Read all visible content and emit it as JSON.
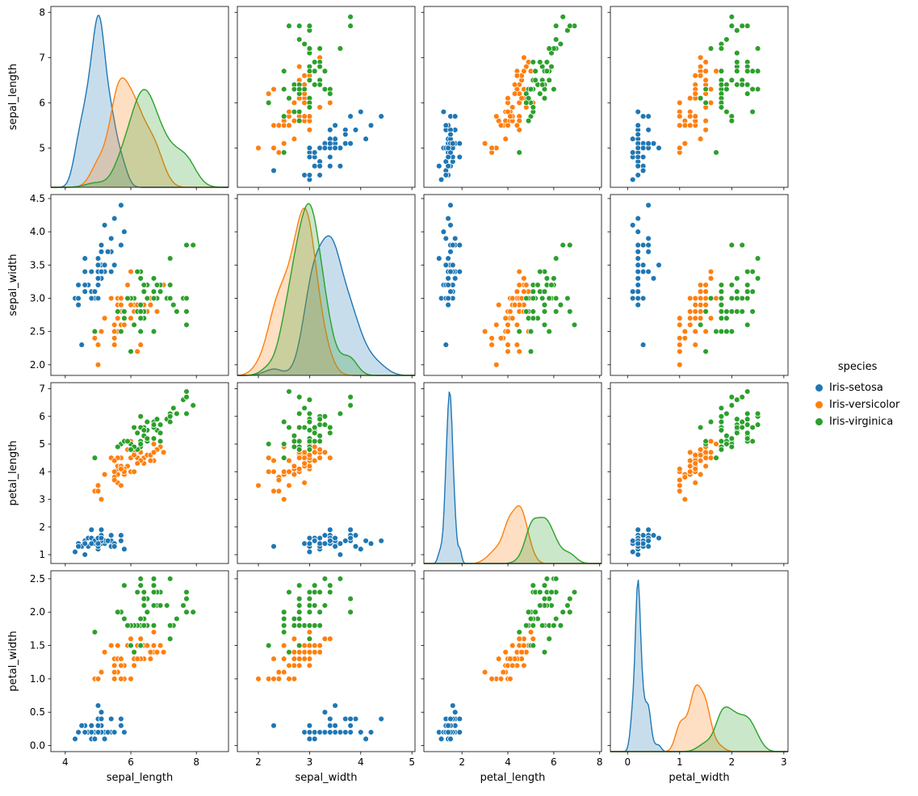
{
  "figure": {
    "background": "#ffffff",
    "spine_color": "#000000",
    "text_color": "#000000"
  },
  "chart_data": {
    "type": "scatter",
    "subtype": "pairplot",
    "title": "",
    "dataset": "iris",
    "grid": false,
    "diagonal": "kde",
    "variables": [
      "sepal_length",
      "sepal_width",
      "petal_length",
      "petal_width"
    ],
    "legend": {
      "title": "species",
      "position": "right",
      "entries": [
        {
          "label": "Iris-setosa",
          "color": "#1f77b4"
        },
        {
          "label": "Iris-versicolor",
          "color": "#ff7f0e"
        },
        {
          "label": "Iris-virginica",
          "color": "#2ca02c"
        }
      ]
    },
    "axes": {
      "sepal_length": {
        "label": "sepal_length",
        "x_lim": [
          3.56,
          8.98
        ],
        "y_lim": [
          4.13,
          8.13
        ],
        "x_ticks": [
          4,
          6,
          8
        ],
        "x_tick_labels": [
          "4",
          "6",
          "8"
        ],
        "y_ticks": [
          5,
          6,
          7,
          8
        ],
        "y_tick_labels": [
          "5",
          "6",
          "7",
          "8"
        ]
      },
      "sepal_width": {
        "label": "sepal_width",
        "x_lim": [
          1.59,
          5.06
        ],
        "y_lim": [
          1.84,
          4.56
        ],
        "x_ticks": [
          2,
          3,
          4,
          5
        ],
        "x_tick_labels": [
          "2",
          "3",
          "4",
          "5"
        ],
        "y_ticks": [
          2.0,
          2.5,
          3.0,
          3.5,
          4.0,
          4.5
        ],
        "y_tick_labels": [
          "2.0",
          "2.5",
          "3.0",
          "3.5",
          "4.0",
          "4.5"
        ]
      },
      "petal_length": {
        "label": "petal_length",
        "x_lim": [
          0.34,
          8.08
        ],
        "y_lim": [
          0.68,
          7.22
        ],
        "x_ticks": [
          2,
          4,
          6,
          8
        ],
        "x_tick_labels": [
          "2",
          "4",
          "6",
          "8"
        ],
        "y_ticks": [
          1,
          2,
          3,
          4,
          5,
          6,
          7
        ],
        "y_tick_labels": [
          "1",
          "2",
          "3",
          "4",
          "5",
          "6",
          "7"
        ]
      },
      "petal_width": {
        "label": "petal_width",
        "x_lim": [
          -0.33,
          3.08
        ],
        "y_lim": [
          -0.09,
          2.62
        ],
        "x_ticks": [
          0,
          1,
          2,
          3
        ],
        "x_tick_labels": [
          "0",
          "1",
          "2",
          "3"
        ],
        "y_ticks": [
          0.0,
          0.5,
          1.0,
          1.5,
          2.0,
          2.5
        ],
        "y_tick_labels": [
          "0.0",
          "0.5",
          "1.0",
          "1.5",
          "2.0",
          "2.5"
        ]
      }
    },
    "series": [
      {
        "name": "Iris-setosa",
        "color": "#1f77b4",
        "points": [
          [
            5.1,
            3.5,
            1.4,
            0.2
          ],
          [
            4.9,
            3.0,
            1.4,
            0.2
          ],
          [
            4.7,
            3.2,
            1.3,
            0.2
          ],
          [
            4.6,
            3.1,
            1.5,
            0.2
          ],
          [
            5.0,
            3.6,
            1.4,
            0.2
          ],
          [
            5.4,
            3.9,
            1.7,
            0.4
          ],
          [
            4.6,
            3.4,
            1.4,
            0.3
          ],
          [
            5.0,
            3.4,
            1.5,
            0.2
          ],
          [
            4.4,
            2.9,
            1.4,
            0.2
          ],
          [
            4.9,
            3.1,
            1.5,
            0.1
          ],
          [
            5.4,
            3.7,
            1.5,
            0.2
          ],
          [
            4.8,
            3.4,
            1.6,
            0.2
          ],
          [
            4.8,
            3.0,
            1.4,
            0.1
          ],
          [
            4.3,
            3.0,
            1.1,
            0.1
          ],
          [
            5.8,
            4.0,
            1.2,
            0.2
          ],
          [
            5.7,
            4.4,
            1.5,
            0.4
          ],
          [
            5.4,
            3.9,
            1.3,
            0.4
          ],
          [
            5.1,
            3.5,
            1.4,
            0.3
          ],
          [
            5.7,
            3.8,
            1.7,
            0.3
          ],
          [
            5.1,
            3.8,
            1.5,
            0.3
          ],
          [
            5.4,
            3.4,
            1.7,
            0.2
          ],
          [
            5.1,
            3.7,
            1.5,
            0.4
          ],
          [
            4.6,
            3.6,
            1.0,
            0.2
          ],
          [
            5.1,
            3.3,
            1.7,
            0.5
          ],
          [
            4.8,
            3.4,
            1.9,
            0.2
          ],
          [
            5.0,
            3.0,
            1.6,
            0.2
          ],
          [
            5.0,
            3.4,
            1.6,
            0.4
          ],
          [
            5.2,
            3.5,
            1.5,
            0.2
          ],
          [
            5.2,
            3.4,
            1.4,
            0.2
          ],
          [
            4.7,
            3.2,
            1.6,
            0.2
          ],
          [
            4.8,
            3.1,
            1.6,
            0.2
          ],
          [
            5.4,
            3.4,
            1.5,
            0.4
          ],
          [
            5.2,
            4.1,
            1.5,
            0.1
          ],
          [
            5.5,
            4.2,
            1.4,
            0.2
          ],
          [
            4.9,
            3.1,
            1.5,
            0.1
          ],
          [
            5.0,
            3.2,
            1.2,
            0.2
          ],
          [
            5.5,
            3.5,
            1.3,
            0.2
          ],
          [
            4.9,
            3.1,
            1.5,
            0.1
          ],
          [
            4.4,
            3.0,
            1.3,
            0.2
          ],
          [
            5.1,
            3.4,
            1.5,
            0.2
          ],
          [
            5.0,
            3.5,
            1.3,
            0.3
          ],
          [
            4.5,
            2.3,
            1.3,
            0.3
          ],
          [
            4.4,
            3.2,
            1.3,
            0.2
          ],
          [
            5.0,
            3.5,
            1.6,
            0.6
          ],
          [
            5.1,
            3.8,
            1.9,
            0.4
          ],
          [
            4.8,
            3.0,
            1.4,
            0.3
          ],
          [
            5.1,
            3.8,
            1.6,
            0.2
          ],
          [
            4.6,
            3.2,
            1.4,
            0.2
          ],
          [
            5.3,
            3.7,
            1.5,
            0.2
          ],
          [
            5.0,
            3.3,
            1.4,
            0.2
          ]
        ]
      },
      {
        "name": "Iris-versicolor",
        "color": "#ff7f0e",
        "points": [
          [
            7.0,
            3.2,
            4.7,
            1.4
          ],
          [
            6.4,
            3.2,
            4.5,
            1.5
          ],
          [
            6.9,
            3.1,
            4.9,
            1.5
          ],
          [
            5.5,
            2.3,
            4.0,
            1.3
          ],
          [
            6.5,
            2.8,
            4.6,
            1.5
          ],
          [
            5.7,
            2.8,
            4.5,
            1.3
          ],
          [
            6.3,
            3.3,
            4.7,
            1.6
          ],
          [
            4.9,
            2.4,
            3.3,
            1.0
          ],
          [
            6.6,
            2.9,
            4.6,
            1.3
          ],
          [
            5.2,
            2.7,
            3.9,
            1.4
          ],
          [
            5.0,
            2.0,
            3.5,
            1.0
          ],
          [
            5.9,
            3.0,
            4.2,
            1.5
          ],
          [
            6.0,
            2.2,
            4.0,
            1.0
          ],
          [
            6.1,
            2.9,
            4.7,
            1.4
          ],
          [
            5.6,
            2.9,
            3.6,
            1.3
          ],
          [
            6.7,
            3.1,
            4.4,
            1.4
          ],
          [
            5.6,
            3.0,
            4.5,
            1.5
          ],
          [
            5.8,
            2.7,
            4.1,
            1.0
          ],
          [
            6.2,
            2.2,
            4.5,
            1.5
          ],
          [
            5.6,
            2.5,
            3.9,
            1.1
          ],
          [
            5.9,
            3.2,
            4.8,
            1.8
          ],
          [
            6.1,
            2.8,
            4.0,
            1.3
          ],
          [
            6.3,
            2.5,
            4.9,
            1.5
          ],
          [
            6.1,
            2.8,
            4.7,
            1.2
          ],
          [
            6.4,
            2.9,
            4.3,
            1.3
          ],
          [
            6.6,
            3.0,
            4.4,
            1.4
          ],
          [
            6.8,
            2.8,
            4.8,
            1.4
          ],
          [
            6.7,
            3.0,
            5.0,
            1.7
          ],
          [
            6.0,
            2.9,
            4.5,
            1.5
          ],
          [
            5.7,
            2.6,
            3.5,
            1.0
          ],
          [
            5.5,
            2.4,
            3.8,
            1.1
          ],
          [
            5.5,
            2.4,
            3.7,
            1.0
          ],
          [
            5.8,
            2.7,
            3.9,
            1.2
          ],
          [
            6.0,
            2.7,
            5.1,
            1.6
          ],
          [
            5.4,
            3.0,
            4.5,
            1.5
          ],
          [
            6.0,
            3.4,
            4.5,
            1.6
          ],
          [
            6.7,
            3.1,
            4.7,
            1.5
          ],
          [
            6.3,
            2.3,
            4.4,
            1.3
          ],
          [
            5.6,
            3.0,
            4.1,
            1.3
          ],
          [
            5.5,
            2.5,
            4.0,
            1.3
          ],
          [
            5.5,
            2.6,
            4.4,
            1.2
          ],
          [
            6.1,
            3.0,
            4.6,
            1.4
          ],
          [
            5.8,
            2.6,
            4.0,
            1.2
          ],
          [
            5.0,
            2.3,
            3.3,
            1.0
          ],
          [
            5.6,
            2.7,
            4.2,
            1.3
          ],
          [
            5.7,
            3.0,
            4.2,
            1.2
          ],
          [
            5.7,
            2.9,
            4.2,
            1.3
          ],
          [
            6.2,
            2.9,
            4.3,
            1.3
          ],
          [
            5.1,
            2.5,
            3.0,
            1.1
          ],
          [
            5.7,
            2.8,
            4.1,
            1.3
          ]
        ]
      },
      {
        "name": "Iris-virginica",
        "color": "#2ca02c",
        "points": [
          [
            6.3,
            3.3,
            6.0,
            2.5
          ],
          [
            5.8,
            2.7,
            5.1,
            1.9
          ],
          [
            7.1,
            3.0,
            5.9,
            2.1
          ],
          [
            6.3,
            2.9,
            5.6,
            1.8
          ],
          [
            6.5,
            3.0,
            5.8,
            2.2
          ],
          [
            7.6,
            3.0,
            6.6,
            2.1
          ],
          [
            4.9,
            2.5,
            4.5,
            1.7
          ],
          [
            7.3,
            2.9,
            6.3,
            1.8
          ],
          [
            6.7,
            2.5,
            5.8,
            1.8
          ],
          [
            7.2,
            3.6,
            6.1,
            2.5
          ],
          [
            6.5,
            3.2,
            5.1,
            2.0
          ],
          [
            6.4,
            2.7,
            5.3,
            1.9
          ],
          [
            6.8,
            3.0,
            5.5,
            2.1
          ],
          [
            5.7,
            2.5,
            5.0,
            2.0
          ],
          [
            5.8,
            2.8,
            5.1,
            2.4
          ],
          [
            6.4,
            3.2,
            5.3,
            2.3
          ],
          [
            6.5,
            3.0,
            5.5,
            1.8
          ],
          [
            7.7,
            3.8,
            6.7,
            2.2
          ],
          [
            7.7,
            2.6,
            6.9,
            2.3
          ],
          [
            6.0,
            2.2,
            5.0,
            1.5
          ],
          [
            6.9,
            3.2,
            5.7,
            2.3
          ],
          [
            5.6,
            2.8,
            4.9,
            2.0
          ],
          [
            7.7,
            2.8,
            6.7,
            2.0
          ],
          [
            6.3,
            2.7,
            4.9,
            1.8
          ],
          [
            6.7,
            3.3,
            5.7,
            2.1
          ],
          [
            7.2,
            3.2,
            6.0,
            1.8
          ],
          [
            6.2,
            2.8,
            4.8,
            1.8
          ],
          [
            6.1,
            3.0,
            4.9,
            1.8
          ],
          [
            6.4,
            2.8,
            5.6,
            2.1
          ],
          [
            7.2,
            3.0,
            5.8,
            1.6
          ],
          [
            7.4,
            2.8,
            6.1,
            1.9
          ],
          [
            7.9,
            3.8,
            6.4,
            2.0
          ],
          [
            6.4,
            2.8,
            5.6,
            2.2
          ],
          [
            6.3,
            2.8,
            5.1,
            1.5
          ],
          [
            6.1,
            2.6,
            5.6,
            1.4
          ],
          [
            7.7,
            3.0,
            6.1,
            2.3
          ],
          [
            6.3,
            3.4,
            5.6,
            2.4
          ],
          [
            6.4,
            3.1,
            5.5,
            1.8
          ],
          [
            6.0,
            3.0,
            4.8,
            1.8
          ],
          [
            6.9,
            3.1,
            5.4,
            2.1
          ],
          [
            6.7,
            3.1,
            5.6,
            2.4
          ],
          [
            6.9,
            3.1,
            5.1,
            2.3
          ],
          [
            5.8,
            2.7,
            5.1,
            1.9
          ],
          [
            6.8,
            3.2,
            5.9,
            2.3
          ],
          [
            6.7,
            3.3,
            5.7,
            2.5
          ],
          [
            6.7,
            3.0,
            5.2,
            2.3
          ],
          [
            6.3,
            2.5,
            5.0,
            1.9
          ],
          [
            6.5,
            3.0,
            5.2,
            2.0
          ],
          [
            6.2,
            3.4,
            5.4,
            2.3
          ],
          [
            5.9,
            3.0,
            5.1,
            1.8
          ]
        ]
      }
    ]
  }
}
